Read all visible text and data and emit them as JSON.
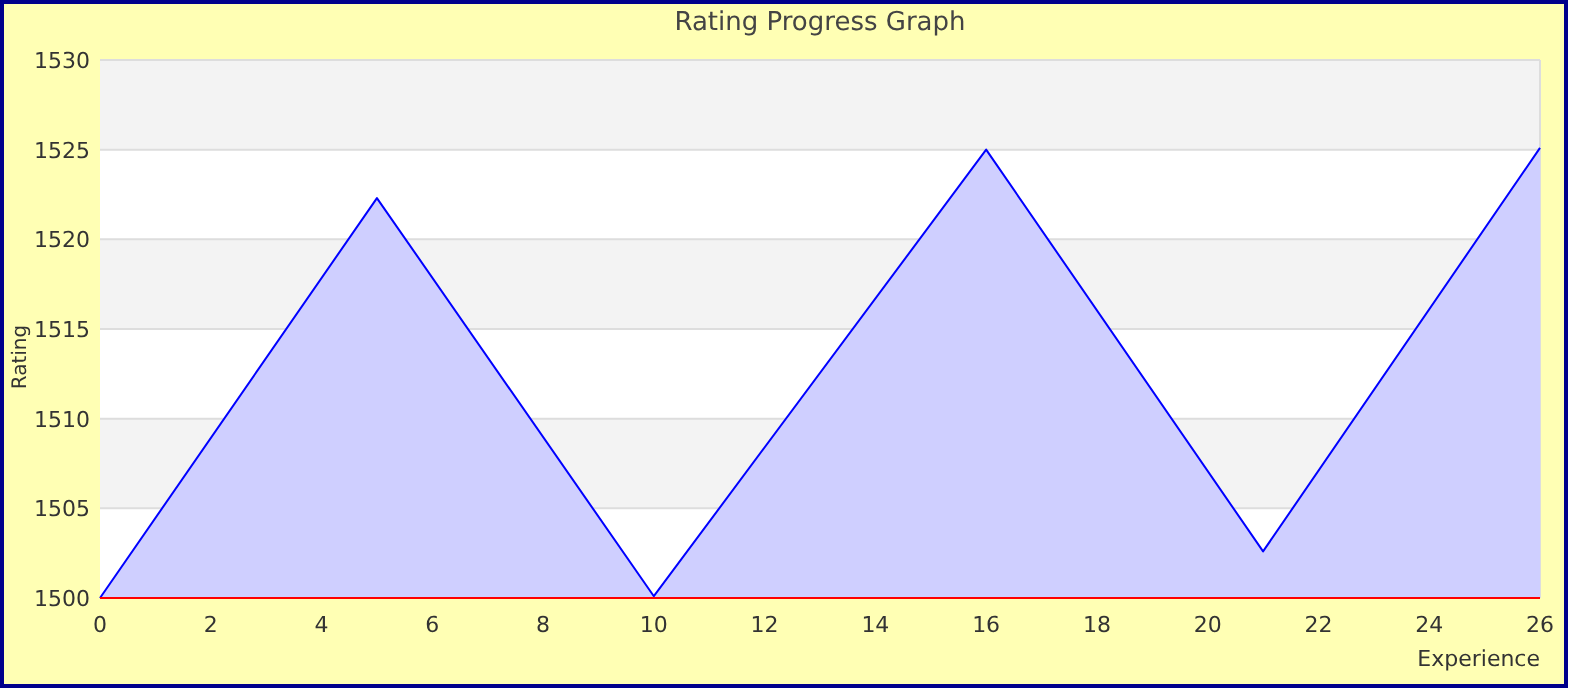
{
  "chart_data": {
    "type": "area",
    "title": "Rating Progress Graph",
    "xlabel": "Experience",
    "ylabel": "Rating",
    "x": [
      0,
      5,
      10,
      16,
      21,
      26
    ],
    "series": [
      {
        "color": "#0000ff",
        "values": [
          1500,
          1522.3,
          1500.1,
          1525,
          1502.6,
          1525.1
        ]
      }
    ],
    "xlim": [
      0,
      26
    ],
    "xticks": [
      0,
      2,
      4,
      6,
      8,
      10,
      12,
      14,
      16,
      18,
      20,
      22,
      24,
      26
    ],
    "ylim": [
      1500,
      1530
    ],
    "yticks": [
      1500,
      1505,
      1510,
      1515,
      1520,
      1525,
      1530
    ],
    "grid": "y"
  }
}
